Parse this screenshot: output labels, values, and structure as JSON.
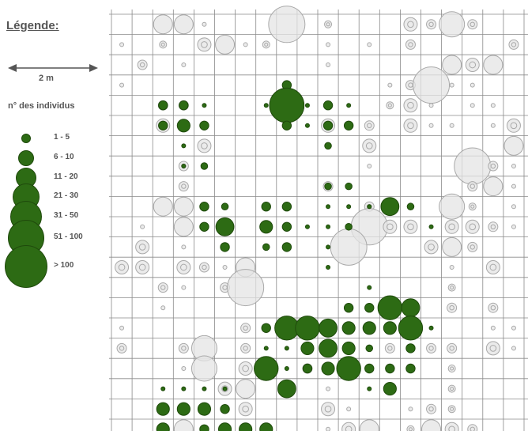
{
  "legend": {
    "title": "Légende:",
    "scale_label": "2 m",
    "count_title": "n° des individus",
    "classes": [
      "1 - 5",
      "6 - 10",
      "11 - 20",
      "21 - 30",
      "31 - 50",
      "51 - 100",
      "> 100"
    ]
  },
  "colors": {
    "grid": "#8a8a8a",
    "green": "#2d6b14",
    "green_edge": "#1f4a0c",
    "grey_fill": "#e4e4e4",
    "grey_edge": "#a9a9a9"
  },
  "map_data": {
    "grid": {
      "columns": 20,
      "rows": 21
    },
    "green": [
      {
        "col": 8,
        "row": 3,
        "class": 2
      },
      {
        "col": 8,
        "row": 4,
        "class": 6
      },
      {
        "col": 2,
        "row": 4,
        "class": 2
      },
      {
        "col": 3,
        "row": 4,
        "class": 2
      },
      {
        "col": 4,
        "row": 4,
        "class": 0
      },
      {
        "col": 7,
        "row": 4,
        "class": 0
      },
      {
        "col": 9,
        "row": 4,
        "class": 0
      },
      {
        "col": 10,
        "row": 4,
        "class": 2
      },
      {
        "col": 11,
        "row": 4,
        "class": 0
      },
      {
        "col": 2,
        "row": 5,
        "class": 2
      },
      {
        "col": 3,
        "row": 5,
        "class": 3
      },
      {
        "col": 4,
        "row": 5,
        "class": 2
      },
      {
        "col": 8,
        "row": 5,
        "class": 2
      },
      {
        "col": 9,
        "row": 5,
        "class": 0
      },
      {
        "col": 10,
        "row": 5,
        "class": 2
      },
      {
        "col": 11,
        "row": 5,
        "class": 2
      },
      {
        "col": 3,
        "row": 6,
        "class": 0
      },
      {
        "col": 10,
        "row": 6,
        "class": 1
      },
      {
        "col": 3,
        "row": 7,
        "class": 0
      },
      {
        "col": 4,
        "row": 7,
        "class": 1
      },
      {
        "col": 10,
        "row": 8,
        "class": 1
      },
      {
        "col": 11,
        "row": 8,
        "class": 1
      },
      {
        "col": 4,
        "row": 9,
        "class": 2
      },
      {
        "col": 5,
        "row": 9,
        "class": 1
      },
      {
        "col": 7,
        "row": 9,
        "class": 2
      },
      {
        "col": 8,
        "row": 9,
        "class": 2
      },
      {
        "col": 10,
        "row": 9,
        "class": 0
      },
      {
        "col": 11,
        "row": 9,
        "class": 0
      },
      {
        "col": 12,
        "row": 9,
        "class": 0
      },
      {
        "col": 13,
        "row": 9,
        "class": 4
      },
      {
        "col": 14,
        "row": 9,
        "class": 1
      },
      {
        "col": 4,
        "row": 10,
        "class": 2
      },
      {
        "col": 5,
        "row": 10,
        "class": 4
      },
      {
        "col": 7,
        "row": 10,
        "class": 3
      },
      {
        "col": 8,
        "row": 10,
        "class": 2
      },
      {
        "col": 9,
        "row": 10,
        "class": 0
      },
      {
        "col": 10,
        "row": 10,
        "class": 0
      },
      {
        "col": 11,
        "row": 10,
        "class": 1
      },
      {
        "col": 15,
        "row": 10,
        "class": 0
      },
      {
        "col": 5,
        "row": 11,
        "class": 2
      },
      {
        "col": 7,
        "row": 11,
        "class": 1
      },
      {
        "col": 8,
        "row": 11,
        "class": 2
      },
      {
        "col": 10,
        "row": 11,
        "class": 0
      },
      {
        "col": 10,
        "row": 12,
        "class": 0
      },
      {
        "col": 12,
        "row": 13,
        "class": 0
      },
      {
        "col": 11,
        "row": 14,
        "class": 2
      },
      {
        "col": 12,
        "row": 14,
        "class": 2
      },
      {
        "col": 13,
        "row": 14,
        "class": 5
      },
      {
        "col": 14,
        "row": 14,
        "class": 4
      },
      {
        "col": 7,
        "row": 15,
        "class": 2
      },
      {
        "col": 8,
        "row": 15,
        "class": 5
      },
      {
        "col": 9,
        "row": 15,
        "class": 5
      },
      {
        "col": 10,
        "row": 15,
        "class": 4
      },
      {
        "col": 11,
        "row": 15,
        "class": 3
      },
      {
        "col": 12,
        "row": 15,
        "class": 3
      },
      {
        "col": 13,
        "row": 15,
        "class": 3
      },
      {
        "col": 14,
        "row": 15,
        "class": 5
      },
      {
        "col": 15,
        "row": 15,
        "class": 0
      },
      {
        "col": 7,
        "row": 16,
        "class": 0
      },
      {
        "col": 8,
        "row": 16,
        "class": 0
      },
      {
        "col": 9,
        "row": 16,
        "class": 3
      },
      {
        "col": 10,
        "row": 16,
        "class": 4
      },
      {
        "col": 11,
        "row": 16,
        "class": 3
      },
      {
        "col": 12,
        "row": 16,
        "class": 1
      },
      {
        "col": 14,
        "row": 16,
        "class": 2
      },
      {
        "col": 7,
        "row": 17,
        "class": 5
      },
      {
        "col": 8,
        "row": 17,
        "class": 0
      },
      {
        "col": 9,
        "row": 17,
        "class": 2
      },
      {
        "col": 10,
        "row": 17,
        "class": 3
      },
      {
        "col": 11,
        "row": 17,
        "class": 5
      },
      {
        "col": 12,
        "row": 17,
        "class": 2
      },
      {
        "col": 13,
        "row": 17,
        "class": 2
      },
      {
        "col": 14,
        "row": 17,
        "class": 2
      },
      {
        "col": 8,
        "row": 18,
        "class": 4
      },
      {
        "col": 12,
        "row": 18,
        "class": 0
      },
      {
        "col": 13,
        "row": 18,
        "class": 3
      },
      {
        "col": 2,
        "row": 18,
        "class": 0
      },
      {
        "col": 3,
        "row": 18,
        "class": 0
      },
      {
        "col": 4,
        "row": 18,
        "class": 0
      },
      {
        "col": 5,
        "row": 18,
        "class": 0
      },
      {
        "col": 2,
        "row": 19,
        "class": 3
      },
      {
        "col": 3,
        "row": 19,
        "class": 3
      },
      {
        "col": 4,
        "row": 19,
        "class": 3
      },
      {
        "col": 5,
        "row": 19,
        "class": 2
      },
      {
        "col": 2,
        "row": 20,
        "class": 3
      },
      {
        "col": 4,
        "row": 20,
        "class": 2
      },
      {
        "col": 5,
        "row": 20,
        "class": 3
      },
      {
        "col": 6,
        "row": 20,
        "class": 3
      },
      {
        "col": 7,
        "row": 20,
        "class": 3
      }
    ],
    "grey": [
      {
        "col": 2,
        "row": 0,
        "class": 4
      },
      {
        "col": 3,
        "row": 0,
        "class": 4
      },
      {
        "col": 4,
        "row": 0,
        "class": 0
      },
      {
        "col": 8,
        "row": 0,
        "class": 6
      },
      {
        "col": 10,
        "row": 0,
        "class": 1
      },
      {
        "col": 14,
        "row": 0,
        "class": 3
      },
      {
        "col": 15,
        "row": 0,
        "class": 2
      },
      {
        "col": 16,
        "row": 0,
        "class": 5
      },
      {
        "col": 17,
        "row": 0,
        "class": 2
      },
      {
        "col": 0,
        "row": 1,
        "class": 0
      },
      {
        "col": 2,
        "row": 1,
        "class": 1
      },
      {
        "col": 4,
        "row": 1,
        "class": 3
      },
      {
        "col": 5,
        "row": 1,
        "class": 4
      },
      {
        "col": 6,
        "row": 1,
        "class": 0
      },
      {
        "col": 7,
        "row": 1,
        "class": 1
      },
      {
        "col": 10,
        "row": 1,
        "class": 0
      },
      {
        "col": 12,
        "row": 1,
        "class": 0
      },
      {
        "col": 14,
        "row": 1,
        "class": 2
      },
      {
        "col": 19,
        "row": 1,
        "class": 2
      },
      {
        "col": 1,
        "row": 2,
        "class": 2
      },
      {
        "col": 3,
        "row": 2,
        "class": 0
      },
      {
        "col": 10,
        "row": 2,
        "class": 0
      },
      {
        "col": 16,
        "row": 2,
        "class": 4
      },
      {
        "col": 17,
        "row": 2,
        "class": 3
      },
      {
        "col": 18,
        "row": 2,
        "class": 4
      },
      {
        "col": 0,
        "row": 3,
        "class": 0
      },
      {
        "col": 14,
        "row": 3,
        "class": 2
      },
      {
        "col": 15,
        "row": 3,
        "class": 6
      },
      {
        "col": 16,
        "row": 3,
        "class": 0
      },
      {
        "col": 17,
        "row": 3,
        "class": 0
      },
      {
        "col": 13,
        "row": 3,
        "class": 0
      },
      {
        "col": 2,
        "row": 4,
        "class": 2
      },
      {
        "col": 3,
        "row": 4,
        "class": 2
      },
      {
        "col": 13,
        "row": 4,
        "class": 1
      },
      {
        "col": 14,
        "row": 4,
        "class": 3
      },
      {
        "col": 15,
        "row": 4,
        "class": 0
      },
      {
        "col": 17,
        "row": 4,
        "class": 0
      },
      {
        "col": 18,
        "row": 4,
        "class": 0
      },
      {
        "col": 2,
        "row": 5,
        "class": 3
      },
      {
        "col": 10,
        "row": 5,
        "class": 3
      },
      {
        "col": 12,
        "row": 5,
        "class": 2
      },
      {
        "col": 14,
        "row": 5,
        "class": 3
      },
      {
        "col": 15,
        "row": 5,
        "class": 0
      },
      {
        "col": 16,
        "row": 5,
        "class": 0
      },
      {
        "col": 18,
        "row": 5,
        "class": 0
      },
      {
        "col": 19,
        "row": 5,
        "class": 3
      },
      {
        "col": 4,
        "row": 6,
        "class": 3
      },
      {
        "col": 12,
        "row": 6,
        "class": 3
      },
      {
        "col": 19,
        "row": 6,
        "class": 4
      },
      {
        "col": 3,
        "row": 7,
        "class": 2
      },
      {
        "col": 12,
        "row": 7,
        "class": 0
      },
      {
        "col": 17,
        "row": 7,
        "class": 6
      },
      {
        "col": 18,
        "row": 7,
        "class": 2
      },
      {
        "col": 19,
        "row": 7,
        "class": 0
      },
      {
        "col": 3,
        "row": 8,
        "class": 2
      },
      {
        "col": 10,
        "row": 8,
        "class": 2
      },
      {
        "col": 17,
        "row": 8,
        "class": 2
      },
      {
        "col": 18,
        "row": 8,
        "class": 4
      },
      {
        "col": 19,
        "row": 8,
        "class": 0
      },
      {
        "col": 2,
        "row": 9,
        "class": 4
      },
      {
        "col": 3,
        "row": 9,
        "class": 4
      },
      {
        "col": 12,
        "row": 9,
        "class": 2
      },
      {
        "col": 16,
        "row": 9,
        "class": 5
      },
      {
        "col": 17,
        "row": 9,
        "class": 1
      },
      {
        "col": 19,
        "row": 9,
        "class": 0
      },
      {
        "col": 1,
        "row": 10,
        "class": 0
      },
      {
        "col": 3,
        "row": 10,
        "class": 4
      },
      {
        "col": 12,
        "row": 10,
        "class": 6
      },
      {
        "col": 13,
        "row": 10,
        "class": 3
      },
      {
        "col": 14,
        "row": 10,
        "class": 3
      },
      {
        "col": 16,
        "row": 10,
        "class": 3
      },
      {
        "col": 17,
        "row": 10,
        "class": 3
      },
      {
        "col": 18,
        "row": 10,
        "class": 2
      },
      {
        "col": 19,
        "row": 10,
        "class": 0
      },
      {
        "col": 1,
        "row": 11,
        "class": 3
      },
      {
        "col": 3,
        "row": 11,
        "class": 0
      },
      {
        "col": 11,
        "row": 11,
        "class": 6
      },
      {
        "col": 15,
        "row": 11,
        "class": 3
      },
      {
        "col": 16,
        "row": 11,
        "class": 4
      },
      {
        "col": 17,
        "row": 11,
        "class": 2
      },
      {
        "col": 0,
        "row": 12,
        "class": 3
      },
      {
        "col": 1,
        "row": 12,
        "class": 3
      },
      {
        "col": 3,
        "row": 12,
        "class": 3
      },
      {
        "col": 4,
        "row": 12,
        "class": 2
      },
      {
        "col": 5,
        "row": 12,
        "class": 0
      },
      {
        "col": 6,
        "row": 12,
        "class": 4
      },
      {
        "col": 16,
        "row": 12,
        "class": 0
      },
      {
        "col": 18,
        "row": 12,
        "class": 3
      },
      {
        "col": 2,
        "row": 13,
        "class": 2
      },
      {
        "col": 3,
        "row": 13,
        "class": 0
      },
      {
        "col": 5,
        "row": 13,
        "class": 2
      },
      {
        "col": 6,
        "row": 13,
        "class": 6
      },
      {
        "col": 16,
        "row": 13,
        "class": 1
      },
      {
        "col": 2,
        "row": 14,
        "class": 0
      },
      {
        "col": 16,
        "row": 14,
        "class": 2
      },
      {
        "col": 18,
        "row": 14,
        "class": 2
      },
      {
        "col": 0,
        "row": 15,
        "class": 0
      },
      {
        "col": 6,
        "row": 15,
        "class": 2
      },
      {
        "col": 18,
        "row": 15,
        "class": 0
      },
      {
        "col": 19,
        "row": 15,
        "class": 0
      },
      {
        "col": 0,
        "row": 16,
        "class": 2
      },
      {
        "col": 3,
        "row": 16,
        "class": 2
      },
      {
        "col": 4,
        "row": 16,
        "class": 5
      },
      {
        "col": 6,
        "row": 16,
        "class": 2
      },
      {
        "col": 13,
        "row": 16,
        "class": 2
      },
      {
        "col": 15,
        "row": 16,
        "class": 2
      },
      {
        "col": 16,
        "row": 16,
        "class": 2
      },
      {
        "col": 18,
        "row": 16,
        "class": 3
      },
      {
        "col": 19,
        "row": 16,
        "class": 0
      },
      {
        "col": 3,
        "row": 17,
        "class": 0
      },
      {
        "col": 4,
        "row": 17,
        "class": 5
      },
      {
        "col": 6,
        "row": 17,
        "class": 3
      },
      {
        "col": 9,
        "row": 17,
        "class": 2
      },
      {
        "col": 16,
        "row": 17,
        "class": 1
      },
      {
        "col": 5,
        "row": 18,
        "class": 3
      },
      {
        "col": 6,
        "row": 18,
        "class": 4
      },
      {
        "col": 10,
        "row": 18,
        "class": 0
      },
      {
        "col": 16,
        "row": 18,
        "class": 1
      },
      {
        "col": 6,
        "row": 19,
        "class": 3
      },
      {
        "col": 10,
        "row": 19,
        "class": 3
      },
      {
        "col": 11,
        "row": 19,
        "class": 0
      },
      {
        "col": 14,
        "row": 19,
        "class": 0
      },
      {
        "col": 15,
        "row": 19,
        "class": 2
      },
      {
        "col": 16,
        "row": 19,
        "class": 1
      },
      {
        "col": 3,
        "row": 20,
        "class": 4
      },
      {
        "col": 10,
        "row": 20,
        "class": 0
      },
      {
        "col": 11,
        "row": 20,
        "class": 3
      },
      {
        "col": 12,
        "row": 20,
        "class": 4
      },
      {
        "col": 14,
        "row": 20,
        "class": 1
      },
      {
        "col": 15,
        "row": 20,
        "class": 4
      },
      {
        "col": 16,
        "row": 20,
        "class": 3
      },
      {
        "col": 17,
        "row": 20,
        "class": 2
      }
    ]
  }
}
